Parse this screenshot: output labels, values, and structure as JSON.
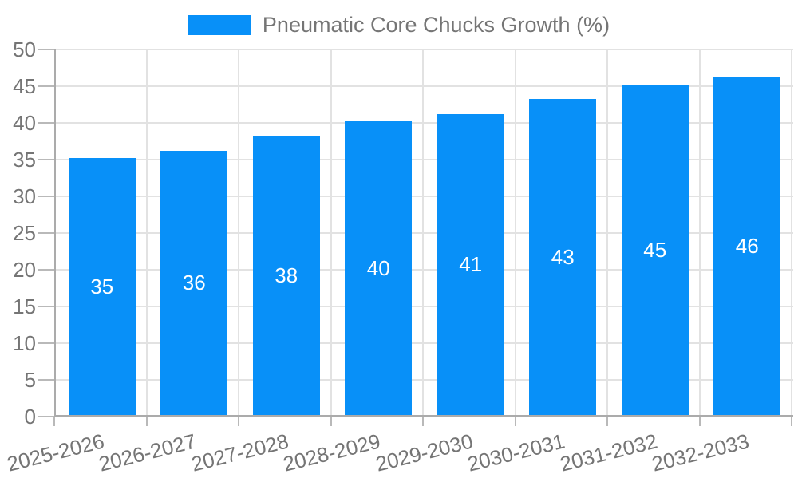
{
  "legend": {
    "label": "Pneumatic Core Chucks Growth (%)"
  },
  "colors": {
    "bar": "#0890F8",
    "grid": "#e2e2e2",
    "axis": "#ababab",
    "tick": "#b9b9b9",
    "text": "#757575",
    "value_text": "#ffffff",
    "background": "#ffffff"
  },
  "chart_data": {
    "type": "bar",
    "title": "Pneumatic Core Chucks Growth (%)",
    "categories": [
      "2025-2026",
      "2026-2027",
      "2027-2028",
      "2028-2029",
      "2029-2030",
      "2030-2031",
      "2031-2032",
      "2032-2033"
    ],
    "values": [
      35,
      36,
      38,
      40,
      41,
      43,
      45,
      46
    ],
    "series": [
      {
        "name": "Pneumatic Core Chucks Growth (%)",
        "values": [
          35,
          36,
          38,
          40,
          41,
          43,
          45,
          46
        ]
      }
    ],
    "xlabel": "",
    "ylabel": "",
    "ylim": [
      0,
      50
    ],
    "ytick_step": 5,
    "yticks": [
      0,
      5,
      10,
      15,
      20,
      25,
      30,
      35,
      40,
      45,
      50
    ],
    "grid": true,
    "legend_position": "top-center",
    "value_labels": "inside-center",
    "value_label_color": "#ffffff",
    "x_label_rotation_deg": -14
  }
}
